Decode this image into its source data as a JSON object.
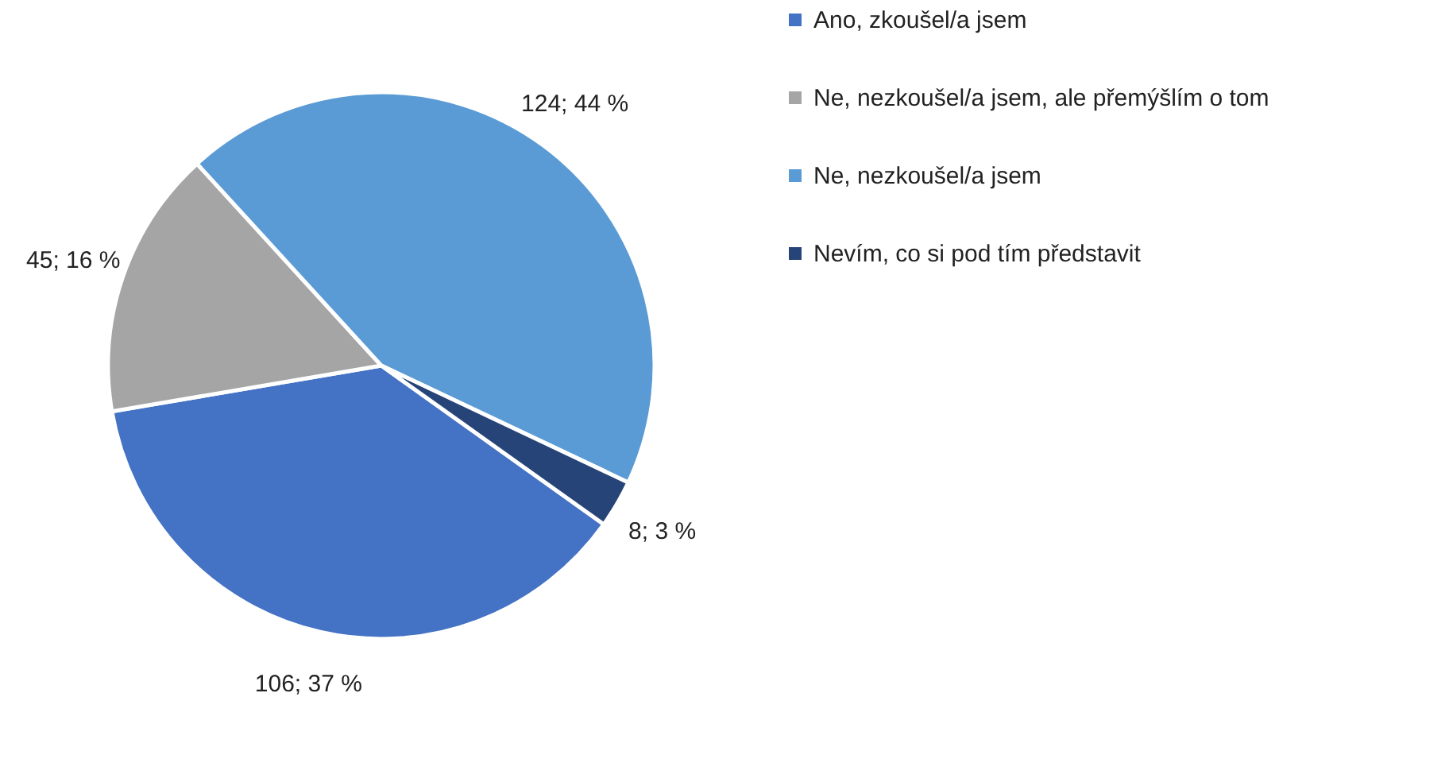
{
  "chart_data": {
    "type": "pie",
    "categories": [
      "Ano, zkoušel/a jsem",
      "Ne, nezkoušel/a jsem, ale přemýšlím o tom",
      "Ne, nezkoušel/a jsem",
      "Nevím, co si pod tím představit"
    ],
    "values": [
      106,
      45,
      124,
      8
    ],
    "colors": [
      "#4472c4",
      "#a5a5a5",
      "#5b9bd5",
      "#264478"
    ],
    "value_labels": [
      "106; 37 %",
      "45; 16 %",
      "124; 44 %",
      "8; 3 %"
    ],
    "legend": "right"
  }
}
